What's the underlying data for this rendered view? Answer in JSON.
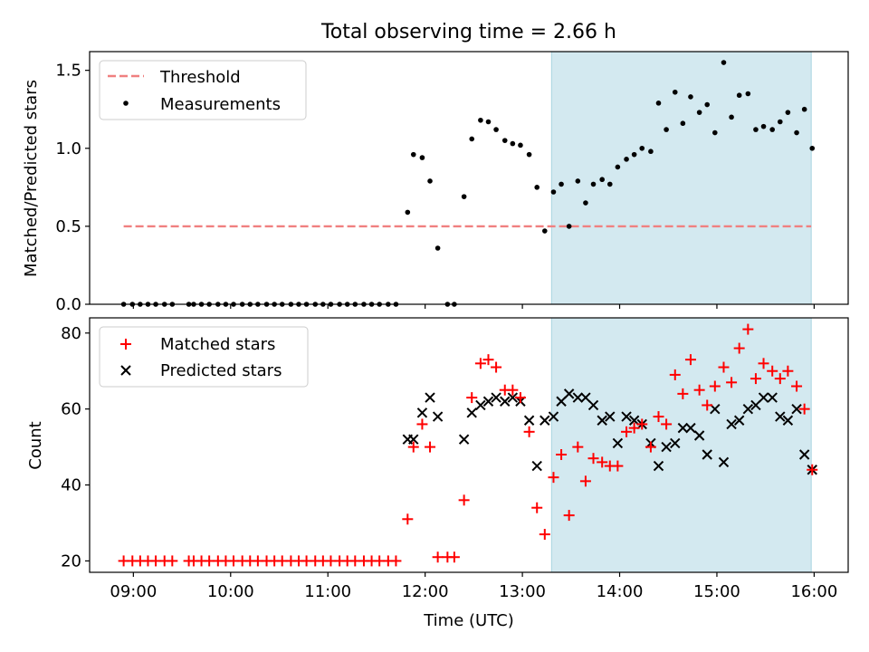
{
  "figure": {
    "title": "Total observing time = 2.66 h",
    "xlabel": "Time (UTC)",
    "x_ticks": [
      "09:00",
      "10:00",
      "11:00",
      "12:00",
      "13:00",
      "14:00",
      "15:00",
      "16:00"
    ],
    "x_tick_hours": [
      9,
      10,
      11,
      12,
      13,
      14,
      15,
      16
    ],
    "xlim_hours": [
      8.55,
      16.35
    ],
    "shaded_region_hours": [
      13.3,
      15.97
    ],
    "shade_color": "#d3e9f0"
  },
  "chart_data": [
    {
      "type": "scatter",
      "ylabel": "Matched/Predicted stars",
      "ylim": [
        0,
        1.62
      ],
      "y_ticks": [
        0.0,
        0.5,
        1.0,
        1.5
      ],
      "y_tick_labels": [
        "0.0",
        "0.5",
        "1.0",
        "1.5"
      ],
      "legend_position": "top-left",
      "threshold": {
        "name": "Threshold",
        "y": 0.5,
        "x_range_hours": [
          8.9,
          15.97
        ],
        "color": "#f08080",
        "style": "dashed"
      },
      "series": [
        {
          "name": "Measurements",
          "marker": "dot",
          "color": "#000000",
          "x_hours": [
            8.9,
            8.99,
            9.07,
            9.15,
            9.23,
            9.32,
            9.4,
            9.57,
            9.62,
            9.7,
            9.78,
            9.87,
            9.95,
            10.03,
            10.12,
            10.2,
            10.28,
            10.37,
            10.45,
            10.53,
            10.62,
            10.7,
            10.78,
            10.87,
            10.95,
            11.03,
            11.12,
            11.2,
            11.28,
            11.37,
            11.45,
            11.53,
            11.62,
            11.7,
            11.82,
            11.88,
            11.97,
            12.05,
            12.13,
            12.23,
            12.3,
            12.4,
            12.48,
            12.57,
            12.65,
            12.73,
            12.82,
            12.9,
            12.98,
            13.07,
            13.15,
            13.23,
            13.32,
            13.4,
            13.48,
            13.57,
            13.65,
            13.73,
            13.82,
            13.9,
            13.98,
            14.07,
            14.15,
            14.23,
            14.32,
            14.4,
            14.48,
            14.57,
            14.65,
            14.73,
            14.82,
            14.9,
            14.98,
            15.07,
            15.15,
            15.23,
            15.32,
            15.4,
            15.48,
            15.57,
            15.65,
            15.73,
            15.82,
            15.9,
            15.98
          ],
          "y": [
            0.0,
            0.0,
            0.0,
            0.0,
            0.0,
            0.0,
            0.0,
            0.0,
            0.0,
            0.0,
            0.0,
            0.0,
            0.0,
            0.0,
            0.0,
            0.0,
            0.0,
            0.0,
            0.0,
            0.0,
            0.0,
            0.0,
            0.0,
            0.0,
            0.0,
            0.0,
            0.0,
            0.0,
            0.0,
            0.0,
            0.0,
            0.0,
            0.0,
            0.0,
            0.59,
            0.96,
            0.94,
            0.79,
            0.36,
            0.0,
            0.0,
            0.69,
            1.06,
            1.18,
            1.17,
            1.12,
            1.05,
            1.03,
            1.02,
            0.96,
            0.75,
            0.47,
            0.72,
            0.77,
            0.5,
            0.79,
            0.65,
            0.77,
            0.8,
            0.77,
            0.88,
            0.93,
            0.96,
            1.0,
            0.98,
            1.29,
            1.12,
            1.36,
            1.16,
            1.33,
            1.23,
            1.28,
            1.1,
            1.55,
            1.2,
            1.34,
            1.35,
            1.12,
            1.14,
            1.12,
            1.17,
            1.23,
            1.1,
            1.25,
            1.0
          ]
        }
      ]
    },
    {
      "type": "scatter",
      "ylabel": "Count",
      "ylim": [
        17,
        84
      ],
      "y_ticks": [
        20,
        40,
        60,
        80
      ],
      "y_tick_labels": [
        "20",
        "40",
        "60",
        "80"
      ],
      "legend_position": "top-left",
      "series": [
        {
          "name": "Matched stars",
          "marker": "plus",
          "color": "#ff0000",
          "x_hours": [
            8.9,
            8.99,
            9.07,
            9.15,
            9.23,
            9.32,
            9.4,
            9.57,
            9.62,
            9.7,
            9.78,
            9.87,
            9.95,
            10.03,
            10.12,
            10.2,
            10.28,
            10.37,
            10.45,
            10.53,
            10.62,
            10.7,
            10.78,
            10.87,
            10.95,
            11.03,
            11.12,
            11.2,
            11.28,
            11.37,
            11.45,
            11.53,
            11.62,
            11.7,
            11.82,
            11.88,
            11.97,
            12.05,
            12.13,
            12.23,
            12.3,
            12.4,
            12.48,
            12.57,
            12.65,
            12.73,
            12.82,
            12.9,
            12.98,
            13.07,
            13.15,
            13.23,
            13.32,
            13.4,
            13.48,
            13.57,
            13.65,
            13.73,
            13.82,
            13.9,
            13.98,
            14.07,
            14.15,
            14.23,
            14.32,
            14.4,
            14.48,
            14.57,
            14.65,
            14.73,
            14.82,
            14.9,
            14.98,
            15.07,
            15.15,
            15.23,
            15.32,
            15.4,
            15.48,
            15.57,
            15.65,
            15.73,
            15.82,
            15.9,
            15.98
          ],
          "y": [
            20,
            20,
            20,
            20,
            20,
            20,
            20,
            20,
            20,
            20,
            20,
            20,
            20,
            20,
            20,
            20,
            20,
            20,
            20,
            20,
            20,
            20,
            20,
            20,
            20,
            20,
            20,
            20,
            20,
            20,
            20,
            20,
            20,
            20,
            31,
            50,
            56,
            50,
            21,
            21,
            21,
            36,
            63,
            72,
            73,
            71,
            65,
            65,
            63,
            54,
            34,
            27,
            42,
            48,
            32,
            50,
            41,
            47,
            46,
            45,
            45,
            54,
            55,
            56,
            50,
            58,
            56,
            69,
            64,
            73,
            65,
            61,
            66,
            71,
            67,
            76,
            81,
            68,
            72,
            70,
            68,
            70,
            66,
            60,
            44
          ]
        },
        {
          "name": "Predicted stars",
          "marker": "x",
          "color": "#000000",
          "x_hours": [
            11.82,
            11.88,
            11.97,
            12.05,
            12.13,
            12.4,
            12.48,
            12.57,
            12.65,
            12.73,
            12.82,
            12.9,
            12.98,
            13.07,
            13.15,
            13.23,
            13.32,
            13.4,
            13.48,
            13.57,
            13.65,
            13.73,
            13.82,
            13.9,
            13.98,
            14.07,
            14.15,
            14.23,
            14.32,
            14.4,
            14.48,
            14.57,
            14.65,
            14.73,
            14.82,
            14.9,
            14.98,
            15.07,
            15.15,
            15.23,
            15.32,
            15.4,
            15.48,
            15.57,
            15.65,
            15.73,
            15.82,
            15.9,
            15.98
          ],
          "y": [
            52,
            52,
            59,
            63,
            58,
            52,
            59,
            61,
            62,
            63,
            62,
            63,
            62,
            57,
            45,
            57,
            58,
            62,
            64,
            63,
            63,
            61,
            57,
            58,
            51,
            58,
            57,
            56,
            51,
            45,
            50,
            51,
            55,
            55,
            53,
            48,
            60,
            46,
            56,
            57,
            60,
            61,
            63,
            63,
            58,
            57,
            60,
            48,
            44
          ]
        }
      ]
    }
  ]
}
